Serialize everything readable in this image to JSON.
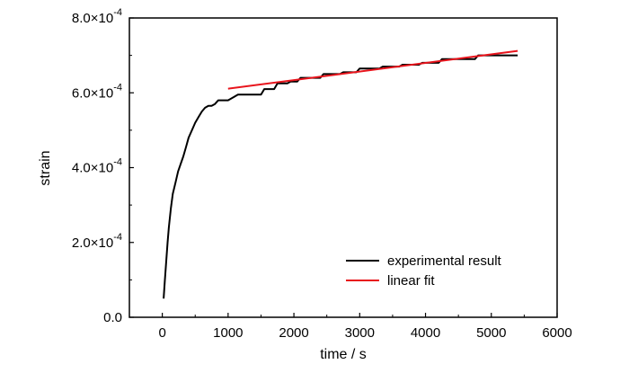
{
  "chart_data": {
    "type": "line",
    "title": "",
    "xlabel": "time / s",
    "ylabel": "strain",
    "xlim": [
      -500,
      6000
    ],
    "ylim": [
      0,
      0.0008
    ],
    "x_ticks": [
      0,
      1000,
      2000,
      3000,
      4000,
      5000,
      6000
    ],
    "x_tick_labels": [
      "0",
      "1000",
      "2000",
      "3000",
      "4000",
      "5000",
      "6000"
    ],
    "y_ticks": [
      0,
      0.0002,
      0.0004,
      0.0006,
      0.0008
    ],
    "y_tick_labels": [
      {
        "mantissa": "0.0",
        "times": "",
        "power": "",
        "exp": ""
      },
      {
        "mantissa": "2.0",
        "times": "×",
        "power": "10",
        "exp": "-4"
      },
      {
        "mantissa": "4.0",
        "times": "×",
        "power": "10",
        "exp": "-4"
      },
      {
        "mantissa": "6.0",
        "times": "×",
        "power": "10",
        "exp": "-4"
      },
      {
        "mantissa": "8.0",
        "times": "×",
        "power": "10",
        "exp": "-4"
      }
    ],
    "grid": false,
    "legend_position": "bottom-right",
    "series": [
      {
        "name": "experimental result",
        "color": "#000000",
        "x": [
          20,
          40,
          60,
          80,
          100,
          130,
          160,
          200,
          240,
          280,
          320,
          360,
          400,
          450,
          500,
          550,
          600,
          650,
          700,
          750,
          800,
          850,
          1000,
          1100,
          1150,
          1500,
          1550,
          1700,
          1750,
          1900,
          1950,
          2050,
          2100,
          2400,
          2450,
          2700,
          2750,
          2950,
          3000,
          3300,
          3350,
          3600,
          3650,
          3900,
          3950,
          4200,
          4250,
          4750,
          4800,
          5400
        ],
        "y": [
          5e-05,
          0.0001,
          0.00015,
          0.0002,
          0.00024,
          0.00029,
          0.00033,
          0.00036,
          0.00039,
          0.00041,
          0.00043,
          0.000455,
          0.00048,
          0.0005,
          0.00052,
          0.000535,
          0.00055,
          0.00056,
          0.000565,
          0.000565,
          0.00057,
          0.00058,
          0.00058,
          0.00059,
          0.000595,
          0.000595,
          0.00061,
          0.00061,
          0.000625,
          0.000625,
          0.00063,
          0.00063,
          0.00064,
          0.00064,
          0.00065,
          0.00065,
          0.000655,
          0.000655,
          0.000665,
          0.000665,
          0.00067,
          0.00067,
          0.000675,
          0.000675,
          0.00068,
          0.00068,
          0.00069,
          0.00069,
          0.0007,
          0.0007
        ]
      },
      {
        "name": "linear fit",
        "color": "#e8141c",
        "x": [
          1000,
          5400
        ],
        "y": [
          0.000611,
          0.000712
        ]
      }
    ]
  }
}
